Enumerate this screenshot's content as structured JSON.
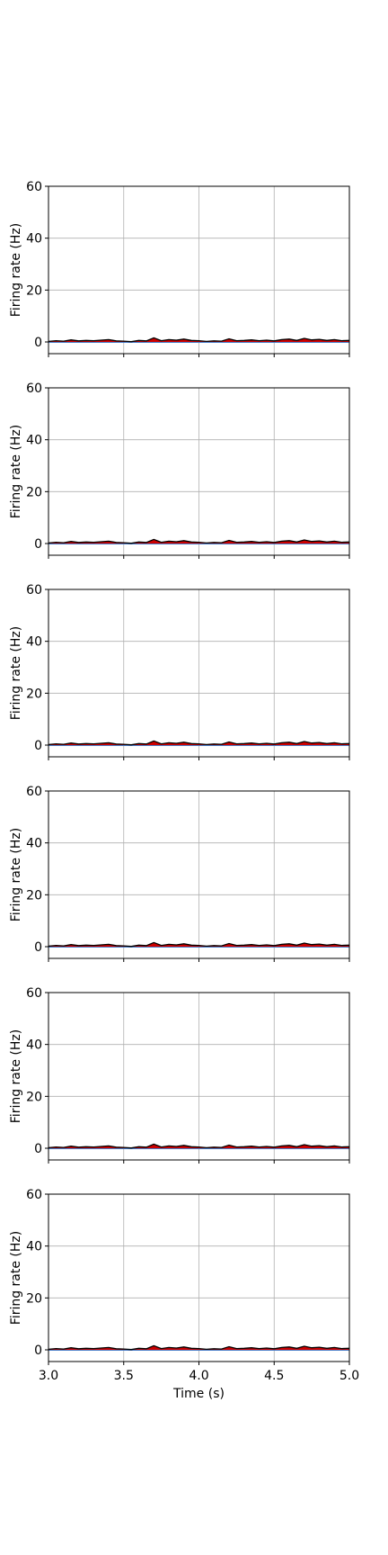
{
  "chart_data": {
    "type": "line",
    "shared_xlabel": "Time (s)",
    "xlim": [
      3.0,
      5.0
    ],
    "x_ticks": [
      "3.0",
      "3.5",
      "4.0",
      "4.5",
      "5.0"
    ],
    "x_tick_values": [
      3.0,
      3.5,
      4.0,
      4.5,
      5.0
    ],
    "ylim": [
      -5,
      60
    ],
    "y_ticks": [
      "0",
      "20",
      "40",
      "60"
    ],
    "y_tick_values": [
      0,
      20,
      40,
      60
    ],
    "grid": true,
    "colors": {
      "rate": "#000000",
      "rate_fill": "#cc0000",
      "baseline": "#4a7cc7",
      "grid": "#b0b0b0"
    },
    "panels": [
      {
        "ylabel": "Firing rate (Hz)"
      },
      {
        "ylabel": "Firing rate (Hz)"
      },
      {
        "ylabel": "Firing rate (Hz)"
      },
      {
        "ylabel": "Firing rate (Hz)"
      },
      {
        "ylabel": "Firing rate (Hz)"
      },
      {
        "ylabel": "Firing rate (Hz)"
      }
    ],
    "series": [
      {
        "x": [
          3.0,
          3.05,
          3.1,
          3.15,
          3.2,
          3.25,
          3.3,
          3.35,
          3.4,
          3.45,
          3.5,
          3.55,
          3.6,
          3.65,
          3.7,
          3.75,
          3.8,
          3.85,
          3.9,
          3.95,
          4.0,
          4.05,
          4.1,
          4.15,
          4.2,
          4.25,
          4.3,
          4.35,
          4.4,
          4.45,
          4.5,
          4.55,
          4.6,
          4.65,
          4.7,
          4.75,
          4.8,
          4.85,
          4.9,
          4.95,
          5.0
        ],
        "values": [
          0.2,
          0.5,
          0.3,
          0.8,
          0.4,
          0.6,
          0.5,
          0.7,
          0.9,
          0.4,
          0.3,
          0.1,
          0.6,
          0.4,
          1.6,
          0.5,
          0.9,
          0.7,
          1.1,
          0.6,
          0.5,
          0.2,
          0.4,
          0.3,
          1.2,
          0.5,
          0.6,
          0.8,
          0.5,
          0.7,
          0.4,
          0.9,
          1.1,
          0.6,
          1.4,
          0.8,
          1.0,
          0.6,
          0.9,
          0.5,
          0.6
        ]
      }
    ],
    "baseline_value": 0
  }
}
